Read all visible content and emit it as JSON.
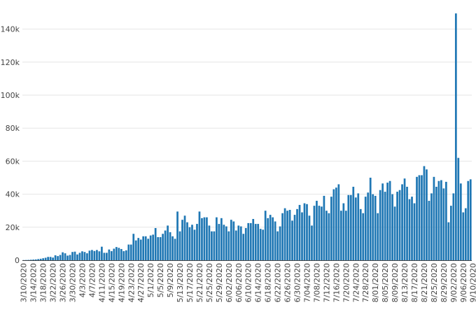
{
  "chart_data": {
    "type": "bar",
    "title": "",
    "xlabel": "",
    "ylabel": "",
    "ylim": [
      0,
      150000
    ],
    "grid": true,
    "legend": "none",
    "bar_color": "#1f77b4",
    "y_ticks": [
      0,
      20000,
      40000,
      60000,
      80000,
      100000,
      120000,
      140000
    ],
    "y_tick_labels": [
      "0",
      "20k",
      "40k",
      "60k",
      "80k",
      "100k",
      "120k",
      "140k"
    ],
    "x_tick_labels": [
      "3/10/2020",
      "3/14/2020",
      "3/18/2020",
      "3/22/2020",
      "3/26/2020",
      "3/30/2020",
      "4/3/2020",
      "4/7/2020",
      "4/11/2020",
      "4/15/2020",
      "4/19/2020",
      "4/23/2020",
      "4/27/2020",
      "5/1/2020",
      "5/5/2020",
      "5/9/2020",
      "5/13/2020",
      "5/17/2020",
      "5/21/2020",
      "5/25/2020",
      "5/29/2020",
      "6/02/2020",
      "6/06/2020",
      "6/10/2020",
      "6/14/2020",
      "6/18/2020",
      "6/22/2020",
      "6/26/2020",
      "6/30/2020",
      "7/04/2020",
      "7/08/2020",
      "7/12/2020",
      "7/16/2020",
      "7/20/2020",
      "7/24/2020",
      "7/28/2020",
      "8/01/2020",
      "8/05/2020",
      "8/09/2020",
      "8/13/2020",
      "8/17/2020",
      "8/21/2020",
      "8/25/2020",
      "8/29/2020",
      "9/02/2020",
      "9/06/2020",
      "9/10/2020"
    ],
    "x_start": "3/10/2020",
    "x_end": "9/11/2020",
    "values": [
      100,
      150,
      200,
      300,
      400,
      500,
      700,
      900,
      1200,
      1500,
      2000,
      2000,
      1600,
      3000,
      2500,
      3200,
      4800,
      4200,
      2800,
      3200,
      5000,
      5200,
      3500,
      4500,
      5400,
      5000,
      4200,
      5800,
      6200,
      5600,
      6200,
      5400,
      8200,
      4500,
      4500,
      6500,
      5500,
      7000,
      8000,
      7500,
      6800,
      5500,
      6000,
      9500,
      9500,
      16000,
      12000,
      13500,
      12500,
      14500,
      14500,
      13000,
      15000,
      15500,
      19500,
      14000,
      14000,
      16000,
      18000,
      21000,
      17000,
      14500,
      13000,
      29500,
      17500,
      24500,
      27000,
      23000,
      20000,
      21500,
      18500,
      22000,
      29500,
      25500,
      26000,
      26000,
      21000,
      17500,
      17500,
      26000,
      22000,
      25500,
      21500,
      20500,
      17500,
      24500,
      23500,
      18000,
      21000,
      20500,
      16000,
      19500,
      22500,
      22500,
      25000,
      22000,
      22000,
      19000,
      18500,
      30000,
      25500,
      27500,
      26000,
      23500,
      17500,
      20500,
      28500,
      31500,
      30000,
      30500,
      24000,
      27500,
      31000,
      33500,
      29000,
      34500,
      34000,
      27000,
      21000,
      33000,
      36000,
      33000,
      32500,
      39000,
      30000,
      28500,
      38500,
      43000,
      44000,
      46000,
      30000,
      34500,
      30000,
      39500,
      39500,
      44500,
      38000,
      40500,
      31000,
      28500,
      38500,
      41000,
      50000,
      40000,
      39000,
      28500,
      42500,
      46500,
      41500,
      47000,
      48000,
      40000,
      32500,
      41500,
      42500,
      46000,
      49500,
      44500,
      37000,
      38500,
      34500,
      50500,
      51500,
      51500,
      57000,
      55000,
      36000,
      40500,
      50500,
      44500,
      48000,
      48500,
      43500,
      47500,
      23000,
      33000,
      40500,
      149500,
      62000,
      46500,
      29000,
      31500,
      48000,
      49000
    ]
  }
}
